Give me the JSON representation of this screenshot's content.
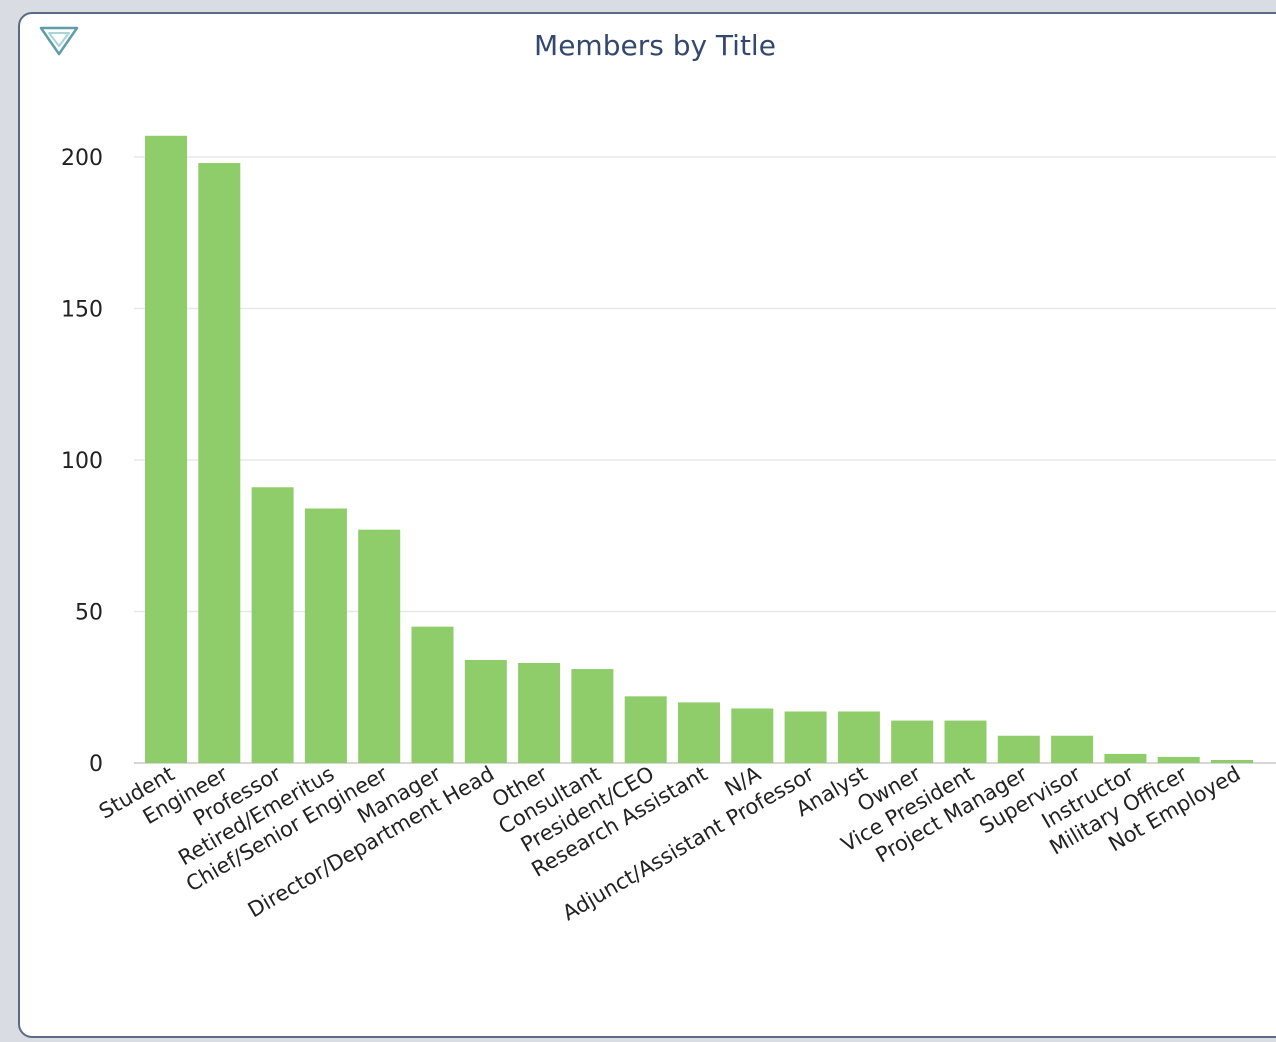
{
  "colors": {
    "bar": "#8fcc6a",
    "gridline": "#e8e8e8",
    "axis": "#d6d6d6",
    "title": "#34486f",
    "panel_border": "#5b6b84",
    "toggle_icon": "#5f9ea8"
  },
  "icons": {
    "collapse": "chevron-down-triangle"
  },
  "chart_data": {
    "type": "bar",
    "title": "Members by Title",
    "xlabel": "",
    "ylabel": "",
    "ylim": [
      0,
      210
    ],
    "yticks": [
      0,
      50,
      100,
      150,
      200
    ],
    "grid": true,
    "legend": "none",
    "categories": [
      "Student",
      "Engineer",
      "Professor",
      "Retired/Emeritus",
      "Chief/Senior Engineer",
      "Manager",
      "Director/Department Head",
      "Other",
      "Consultant",
      "President/CEO",
      "Research Assistant",
      "N/A",
      "Adjunct/Assistant Professor",
      "Analyst",
      "Owner",
      "Vice President",
      "Project Manager",
      "Supervisor",
      "Instructor",
      "Military Officer",
      "Not Employed"
    ],
    "values": [
      207,
      198,
      91,
      84,
      77,
      45,
      34,
      33,
      31,
      22,
      20,
      18,
      17,
      17,
      14,
      14,
      9,
      9,
      3,
      2,
      1
    ]
  }
}
